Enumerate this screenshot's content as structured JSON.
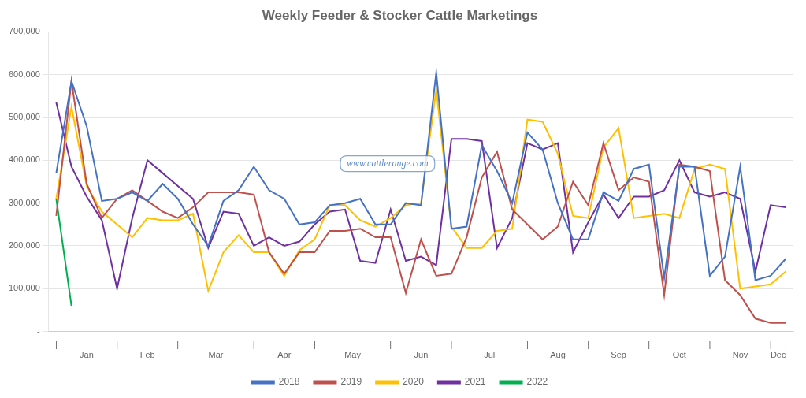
{
  "chart_data": {
    "type": "line",
    "title": "Weekly Feeder & Stocker Cattle Marketings",
    "x": [
      0,
      1,
      2,
      3,
      4,
      5,
      6,
      7,
      8,
      9,
      10,
      11,
      12,
      13,
      14,
      15,
      16,
      17,
      18,
      19,
      20,
      21,
      22,
      23,
      24,
      25,
      26,
      27,
      28,
      29,
      30,
      31,
      32,
      33,
      34,
      35,
      36,
      37,
      38,
      39,
      40,
      41,
      42,
      43,
      44,
      45,
      46,
      47,
      48
    ],
    "xlim": [
      -0.5,
      48.5
    ],
    "xticks": [
      {
        "value": 0,
        "label": "|"
      },
      {
        "value": 2,
        "label": "Jan"
      },
      {
        "value": 4,
        "label": "|"
      },
      {
        "value": 6,
        "label": "Feb"
      },
      {
        "value": 8,
        "label": "|"
      },
      {
        "value": 10.5,
        "label": "Mar"
      },
      {
        "value": 13,
        "label": "|"
      },
      {
        "value": 15,
        "label": "Apr"
      },
      {
        "value": 17,
        "label": "|"
      },
      {
        "value": 19.5,
        "label": "May"
      },
      {
        "value": 22,
        "label": "|"
      },
      {
        "value": 24,
        "label": "Jun"
      },
      {
        "value": 26,
        "label": "|"
      },
      {
        "value": 28.5,
        "label": "Jul"
      },
      {
        "value": 31,
        "label": "|"
      },
      {
        "value": 33,
        "label": "Aug"
      },
      {
        "value": 35,
        "label": "|"
      },
      {
        "value": 37,
        "label": "Sep"
      },
      {
        "value": 39,
        "label": "|"
      },
      {
        "value": 41,
        "label": "Oct"
      },
      {
        "value": 43,
        "label": "|"
      },
      {
        "value": 45,
        "label": "Nov"
      },
      {
        "value": 47,
        "label": "|"
      },
      {
        "value": 47.5,
        "label": "Dec"
      },
      {
        "value": 48,
        "label": "|"
      }
    ],
    "ylim": [
      0,
      700000
    ],
    "yticks": [
      {
        "value": 0,
        "label": "-"
      },
      {
        "value": 100000,
        "label": "100,000"
      },
      {
        "value": 200000,
        "label": "200,000"
      },
      {
        "value": 300000,
        "label": "300,000"
      },
      {
        "value": 400000,
        "label": "400,000"
      },
      {
        "value": 500000,
        "label": "500,000"
      },
      {
        "value": 600000,
        "label": "600,000"
      },
      {
        "value": 700000,
        "label": "700,000"
      }
    ],
    "grid": "y",
    "legend": "bottom",
    "annotations": [
      "www.cattlerange.com"
    ],
    "series": [
      {
        "name": "2018",
        "color": "#4472C4",
        "values": [
          370000,
          585000,
          480000,
          305000,
          310000,
          325000,
          305000,
          345000,
          310000,
          250000,
          200000,
          305000,
          330000,
          385000,
          330000,
          310000,
          250000,
          255000,
          295000,
          300000,
          310000,
          250000,
          250000,
          300000,
          295000,
          605000,
          240000,
          245000,
          435000,
          375000,
          300000,
          465000,
          425000,
          300000,
          215000,
          215000,
          325000,
          305000,
          380000,
          390000,
          125000,
          385000,
          385000,
          130000,
          175000,
          385000,
          120000,
          130000,
          170000
        ]
      },
      {
        "name": "2019",
        "color": "#C0504D",
        "values": [
          270000,
          585000,
          345000,
          265000,
          310000,
          330000,
          305000,
          280000,
          265000,
          290000,
          325000,
          325000,
          325000,
          320000,
          185000,
          135000,
          185000,
          185000,
          235000,
          235000,
          240000,
          220000,
          220000,
          90000,
          215000,
          130000,
          135000,
          220000,
          360000,
          420000,
          285000,
          250000,
          215000,
          245000,
          350000,
          295000,
          440000,
          330000,
          360000,
          350000,
          85000,
          390000,
          385000,
          375000,
          120000,
          85000,
          30000,
          20000,
          20000
        ]
      },
      {
        "name": "2020",
        "color": "#FFC000",
        "values": [
          310000,
          525000,
          340000,
          280000,
          250000,
          220000,
          265000,
          260000,
          260000,
          275000,
          95000,
          185000,
          225000,
          185000,
          185000,
          130000,
          190000,
          215000,
          295000,
          295000,
          260000,
          245000,
          265000,
          295000,
          300000,
          565000,
          245000,
          195000,
          195000,
          235000,
          240000,
          495000,
          490000,
          415000,
          270000,
          265000,
          430000,
          475000,
          265000,
          270000,
          275000,
          265000,
          380000,
          390000,
          380000,
          100000,
          105000,
          110000,
          140000
        ]
      },
      {
        "name": "2021",
        "color": "#7030A0",
        "values": [
          535000,
          385000,
          315000,
          260000,
          100000,
          265000,
          400000,
          370000,
          340000,
          310000,
          195000,
          280000,
          275000,
          200000,
          220000,
          200000,
          210000,
          250000,
          280000,
          285000,
          165000,
          160000,
          285000,
          165000,
          175000,
          155000,
          450000,
          450000,
          445000,
          195000,
          265000,
          440000,
          425000,
          440000,
          185000,
          255000,
          320000,
          265000,
          315000,
          315000,
          330000,
          400000,
          325000,
          315000,
          325000,
          310000,
          140000,
          295000,
          290000
        ]
      },
      {
        "name": "2022",
        "color": "#00B050",
        "values": [
          310000,
          60000,
          null,
          null,
          null,
          null,
          null,
          null,
          null,
          null,
          null,
          null,
          null,
          null,
          null,
          null,
          null,
          null,
          null,
          null,
          null,
          null,
          null,
          null,
          null,
          null,
          null,
          null,
          null,
          null,
          null,
          null,
          null,
          null,
          null,
          null,
          null,
          null,
          null,
          null,
          null,
          null,
          null,
          null,
          null,
          null,
          null,
          null,
          null
        ]
      }
    ]
  }
}
